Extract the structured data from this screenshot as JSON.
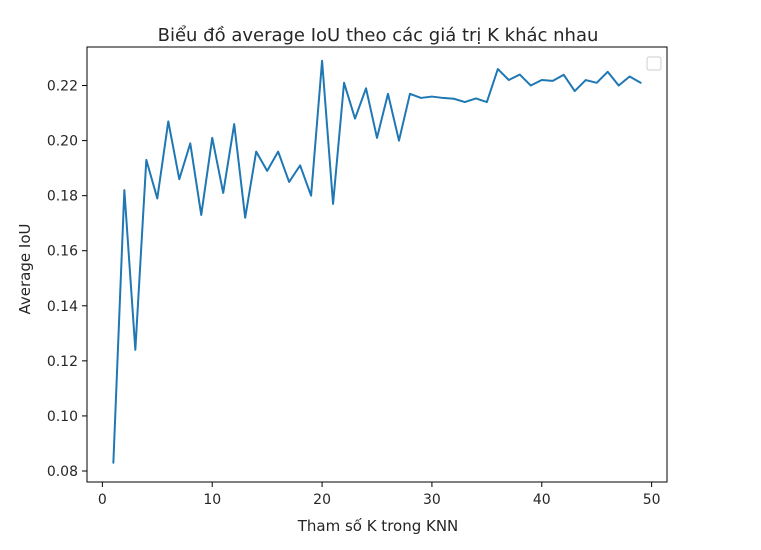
{
  "chart_data": {
    "type": "line",
    "title": "Biểu đồ average IoU theo các giá trị K khác nhau",
    "xlabel": "Tham số K trong KNN",
    "ylabel": "Average IoU",
    "xlim": [
      -1.4,
      51.4
    ],
    "ylim": [
      0.076,
      0.234
    ],
    "xticks": [
      0,
      10,
      20,
      30,
      40,
      50
    ],
    "yticks": [
      0.08,
      0.1,
      0.12,
      0.14,
      0.16,
      0.18,
      0.2,
      0.22
    ],
    "xtick_labels": [
      "0",
      "10",
      "20",
      "30",
      "40",
      "50"
    ],
    "ytick_labels": [
      "0.08",
      "0.10",
      "0.12",
      "0.14",
      "0.16",
      "0.18",
      "0.20",
      "0.22"
    ],
    "grid": false,
    "legend": "upper right (empty)",
    "line_color": "#1f77b4",
    "x": [
      1,
      2,
      3,
      4,
      5,
      6,
      7,
      8,
      9,
      10,
      11,
      12,
      13,
      14,
      15,
      16,
      17,
      18,
      19,
      20,
      21,
      22,
      23,
      24,
      25,
      26,
      27,
      28,
      29,
      30,
      31,
      32,
      33,
      34,
      35,
      36,
      37,
      38,
      39,
      40,
      41,
      42,
      43,
      44,
      45,
      46,
      47,
      48,
      49
    ],
    "values": [
      0.083,
      0.182,
      0.124,
      0.193,
      0.179,
      0.207,
      0.186,
      0.199,
      0.173,
      0.201,
      0.181,
      0.206,
      0.172,
      0.196,
      0.189,
      0.196,
      0.185,
      0.191,
      0.18,
      0.229,
      0.177,
      0.221,
      0.208,
      0.219,
      0.201,
      0.217,
      0.2,
      0.217,
      0.2155,
      0.216,
      0.2155,
      0.2152,
      0.214,
      0.2153,
      0.214,
      0.226,
      0.222,
      0.224,
      0.22,
      0.222,
      0.2217,
      0.2239,
      0.218,
      0.222,
      0.221,
      0.225,
      0.22,
      0.2233,
      0.221
    ]
  }
}
